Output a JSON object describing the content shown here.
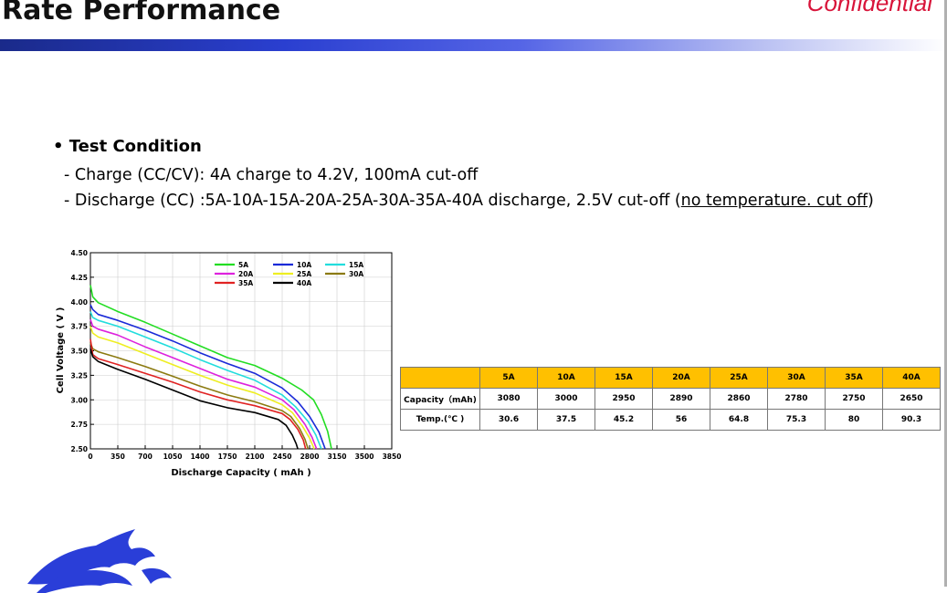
{
  "slide": {
    "title": "Rate Performance",
    "confidential": "Confidential"
  },
  "test": {
    "heading": "Test Condition",
    "charge": "- Charge (CC/CV): 4A charge to 4.2V, 100mA cut-off",
    "discharge_prefix": "- Discharge (CC) :5A-10A-15A-20A-25A-30A-35A-40A  discharge, 2.5V cut-off  (",
    "discharge_underlined": "no temperature. cut off",
    "discharge_suffix": ")"
  },
  "table": {
    "headers": [
      "",
      "5A",
      "10A",
      "15A",
      "20A",
      "25A",
      "30A",
      "35A",
      "40A"
    ],
    "rows": [
      {
        "label": "Capacity（mAh)",
        "values": [
          "3080",
          "3000",
          "2950",
          "2890",
          "2860",
          "2780",
          "2750",
          "2650"
        ]
      },
      {
        "label": "Temp.(℃ )",
        "values": [
          "30.6",
          "37.5",
          "45.2",
          "56",
          "64.8",
          "75.3",
          "80",
          "90.3"
        ]
      }
    ]
  },
  "chart_data": {
    "type": "line",
    "xlabel": "Discharge Capacity ( mAh )",
    "ylabel": "Cell Voltage ( V )",
    "xlim": [
      0,
      3850
    ],
    "ylim": [
      2.5,
      4.5
    ],
    "x_ticks": [
      "0",
      "350",
      "700",
      "1050",
      "1400",
      "1750",
      "2100",
      "2450",
      "2800",
      "3150",
      "3500",
      "3850"
    ],
    "y_ticks": [
      "2.50",
      "2.75",
      "3.00",
      "3.25",
      "3.50",
      "3.75",
      "4.00",
      "4.25",
      "4.50"
    ],
    "grid": true,
    "legend": "top-center",
    "series": [
      {
        "name": "5A",
        "color": "#22dd22",
        "points": [
          [
            0,
            4.17
          ],
          [
            30,
            4.05
          ],
          [
            100,
            3.99
          ],
          [
            350,
            3.9
          ],
          [
            700,
            3.79
          ],
          [
            1050,
            3.67
          ],
          [
            1400,
            3.55
          ],
          [
            1750,
            3.43
          ],
          [
            2100,
            3.35
          ],
          [
            2450,
            3.22
          ],
          [
            2700,
            3.1
          ],
          [
            2850,
            3.0
          ],
          [
            2950,
            2.85
          ],
          [
            3030,
            2.68
          ],
          [
            3080,
            2.5
          ]
        ]
      },
      {
        "name": "10A",
        "color": "#1a2ad8",
        "points": [
          [
            0,
            3.97
          ],
          [
            30,
            3.92
          ],
          [
            100,
            3.87
          ],
          [
            350,
            3.81
          ],
          [
            700,
            3.71
          ],
          [
            1050,
            3.6
          ],
          [
            1400,
            3.48
          ],
          [
            1750,
            3.37
          ],
          [
            2100,
            3.27
          ],
          [
            2450,
            3.12
          ],
          [
            2650,
            2.98
          ],
          [
            2800,
            2.83
          ],
          [
            2920,
            2.67
          ],
          [
            3000,
            2.5
          ]
        ]
      },
      {
        "name": "15A",
        "color": "#22dddd",
        "points": [
          [
            0,
            3.9
          ],
          [
            30,
            3.84
          ],
          [
            100,
            3.81
          ],
          [
            350,
            3.75
          ],
          [
            700,
            3.64
          ],
          [
            1050,
            3.53
          ],
          [
            1400,
            3.41
          ],
          [
            1750,
            3.3
          ],
          [
            2100,
            3.2
          ],
          [
            2450,
            3.05
          ],
          [
            2620,
            2.93
          ],
          [
            2780,
            2.78
          ],
          [
            2880,
            2.64
          ],
          [
            2950,
            2.5
          ]
        ]
      },
      {
        "name": "20A",
        "color": "#dd22dd",
        "points": [
          [
            0,
            3.82
          ],
          [
            30,
            3.75
          ],
          [
            100,
            3.72
          ],
          [
            350,
            3.66
          ],
          [
            700,
            3.54
          ],
          [
            1050,
            3.43
          ],
          [
            1400,
            3.32
          ],
          [
            1750,
            3.21
          ],
          [
            2100,
            3.13
          ],
          [
            2450,
            3.0
          ],
          [
            2600,
            2.9
          ],
          [
            2740,
            2.75
          ],
          [
            2830,
            2.62
          ],
          [
            2890,
            2.5
          ]
        ]
      },
      {
        "name": "25A",
        "color": "#eeee22",
        "points": [
          [
            0,
            3.75
          ],
          [
            30,
            3.68
          ],
          [
            100,
            3.64
          ],
          [
            350,
            3.58
          ],
          [
            700,
            3.47
          ],
          [
            1050,
            3.36
          ],
          [
            1400,
            3.25
          ],
          [
            1750,
            3.15
          ],
          [
            2100,
            3.07
          ],
          [
            2450,
            2.95
          ],
          [
            2580,
            2.87
          ],
          [
            2710,
            2.73
          ],
          [
            2800,
            2.61
          ],
          [
            2860,
            2.5
          ]
        ]
      },
      {
        "name": "30A",
        "color": "#8b7a10",
        "points": [
          [
            0,
            3.58
          ],
          [
            30,
            3.52
          ],
          [
            100,
            3.49
          ],
          [
            350,
            3.43
          ],
          [
            700,
            3.34
          ],
          [
            1050,
            3.24
          ],
          [
            1400,
            3.14
          ],
          [
            1750,
            3.05
          ],
          [
            2100,
            2.98
          ],
          [
            2450,
            2.89
          ],
          [
            2560,
            2.83
          ],
          [
            2670,
            2.71
          ],
          [
            2740,
            2.6
          ],
          [
            2780,
            2.5
          ]
        ]
      },
      {
        "name": "35A",
        "color": "#e02222",
        "points": [
          [
            0,
            3.62
          ],
          [
            30,
            3.46
          ],
          [
            100,
            3.42
          ],
          [
            350,
            3.36
          ],
          [
            700,
            3.27
          ],
          [
            1050,
            3.18
          ],
          [
            1400,
            3.08
          ],
          [
            1750,
            3.0
          ],
          [
            2100,
            2.94
          ],
          [
            2450,
            2.86
          ],
          [
            2550,
            2.8
          ],
          [
            2650,
            2.7
          ],
          [
            2720,
            2.59
          ],
          [
            2750,
            2.5
          ]
        ]
      },
      {
        "name": "40A",
        "color": "#000000",
        "points": [
          [
            0,
            3.52
          ],
          [
            30,
            3.44
          ],
          [
            100,
            3.39
          ],
          [
            350,
            3.31
          ],
          [
            700,
            3.21
          ],
          [
            1050,
            3.1
          ],
          [
            1400,
            2.99
          ],
          [
            1750,
            2.92
          ],
          [
            2100,
            2.87
          ],
          [
            2400,
            2.8
          ],
          [
            2500,
            2.74
          ],
          [
            2580,
            2.64
          ],
          [
            2630,
            2.55
          ],
          [
            2650,
            2.5
          ]
        ]
      }
    ]
  }
}
